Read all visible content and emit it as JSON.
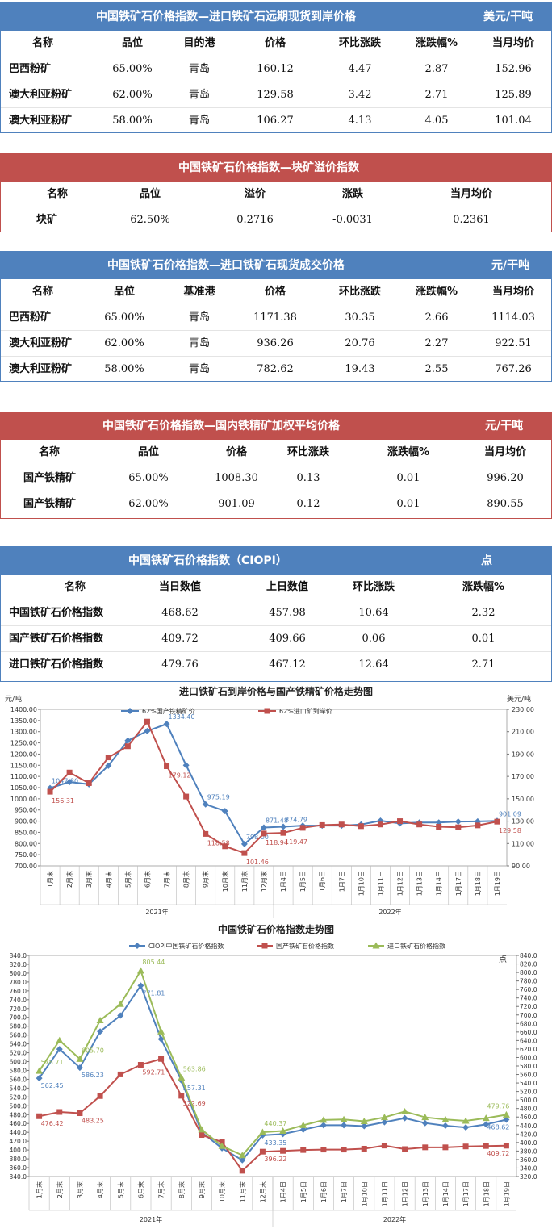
{
  "table1": {
    "title": "中国铁矿石价格指数—进口铁矿石远期现货到岸价格",
    "unit": "美元/干吨",
    "columns": [
      "名称",
      "品位",
      "目的港",
      "价格",
      "环比涨跌",
      "涨跌幅%",
      "当月均价"
    ],
    "rows": [
      [
        "巴西粉矿",
        "65.00%",
        "青岛",
        "160.12",
        "4.47",
        "2.87",
        "152.96"
      ],
      [
        "澳大利亚粉矿",
        "62.00%",
        "青岛",
        "129.58",
        "3.42",
        "2.71",
        "125.89"
      ],
      [
        "澳大利亚粉矿",
        "58.00%",
        "青岛",
        "106.27",
        "4.13",
        "4.05",
        "101.04"
      ]
    ]
  },
  "table2": {
    "title": "中国铁矿石价格指数—块矿溢价指数",
    "columns": [
      "名称",
      "品位",
      "溢价",
      "涨跌",
      "当月均价"
    ],
    "rows": [
      [
        "块矿",
        "62.50%",
        "0.2716",
        "-0.0031",
        "0.2361"
      ]
    ]
  },
  "table3": {
    "title": "中国铁矿石价格指数—进口铁矿石现货成交价格",
    "unit": "元/干吨",
    "columns": [
      "名称",
      "品位",
      "基准港",
      "价格",
      "环比涨跌",
      "涨跌幅%",
      "当月均价"
    ],
    "rows": [
      [
        "巴西粉矿",
        "65.00%",
        "青岛",
        "1171.38",
        "30.35",
        "2.66",
        "1114.03"
      ],
      [
        "澳大利亚粉矿",
        "62.00%",
        "青岛",
        "936.26",
        "20.76",
        "2.27",
        "922.51"
      ],
      [
        "澳大利亚粉矿",
        "58.00%",
        "青岛",
        "782.62",
        "19.43",
        "2.55",
        "767.26"
      ]
    ]
  },
  "table4": {
    "title": "中国铁矿石价格指数—国内铁精矿加权平均价格",
    "unit": "元/干吨",
    "columns": [
      "名称",
      "品位",
      "价格",
      "环比涨跌",
      "涨跌幅%",
      "当月均价"
    ],
    "rows": [
      [
        "国产铁精矿",
        "65.00%",
        "1008.30",
        "0.13",
        "0.01",
        "996.20"
      ],
      [
        "国产铁精矿",
        "62.00%",
        "901.09",
        "0.12",
        "0.01",
        "890.55"
      ]
    ]
  },
  "table5": {
    "title": "中国铁矿石价格指数（CIOPI）",
    "unit": "点",
    "columns": [
      "名称",
      "当日数值",
      "上日数值",
      "环比涨跌",
      "涨跌幅%"
    ],
    "rows": [
      [
        "中国铁矿石价格指数",
        "468.62",
        "457.98",
        "10.64",
        "2.32"
      ],
      [
        "国产铁矿石价格指数",
        "409.72",
        "409.66",
        "0.06",
        "0.01"
      ],
      [
        "进口铁矿石价格指数",
        "479.76",
        "467.12",
        "12.64",
        "2.71"
      ]
    ]
  },
  "chart_data": [
    {
      "type": "line",
      "title": "进口铁矿石到岸价格与国产铁精矿价格走势图",
      "ylabel_left": "元/吨",
      "ylabel_right": "美元/吨",
      "categories": [
        "1月末",
        "2月末",
        "3月末",
        "4月末",
        "5月末",
        "6月末",
        "7月末",
        "8月末",
        "9月末",
        "10月末",
        "11月末",
        "12月末",
        "1月4日",
        "1月5日",
        "1月6日",
        "1月7日",
        "1月10日",
        "1月11日",
        "1月12日",
        "1月13日",
        "1月14日",
        "1月17日",
        "1月18日",
        "1月19日"
      ],
      "year_labels": [
        "2021年",
        "2022年"
      ],
      "y_left_range": [
        700,
        1400
      ],
      "y_right_range": [
        90,
        230
      ],
      "y_left_ticks": [
        "700.00",
        "750.00",
        "800.00",
        "850.00",
        "900.00",
        "950.00",
        "1000.00",
        "1050.00",
        "1100.00",
        "1150.00",
        "1200.00",
        "1250.00",
        "1300.00",
        "1350.00",
        "1400.00"
      ],
      "y_right_ticks": [
        "90.00",
        "110.00",
        "130.00",
        "150.00",
        "170.00",
        "190.00",
        "210.00",
        "230.00"
      ],
      "series": [
        {
          "name": "62%国产铁精矿价",
          "axis": "left",
          "color": "#4f81bd",
          "marker": "diamond",
          "values": [
            1047.8,
            1075,
            1065,
            1148,
            1260,
            1303,
            1334.4,
            1150,
            975.19,
            945,
            798,
            871.48,
            874.79,
            880,
            880,
            880,
            885,
            902,
            890,
            894,
            894,
            898,
            899,
            901.09
          ],
          "labels": [
            "1047.80",
            "",
            "",
            "",
            "",
            "",
            "1334.40",
            "",
            "975.19",
            "",
            "798.00",
            "871.48",
            "874.79",
            "",
            "",
            "",
            "",
            "",
            "",
            "",
            "",
            "",
            "",
            "901.09"
          ]
        },
        {
          "name": "62%进口矿到岸价",
          "axis": "right",
          "color": "#c0504d",
          "marker": "square",
          "values": [
            156.31,
            173.5,
            164,
            187,
            197,
            219,
            179.12,
            152,
            118.58,
            107.5,
            101.46,
            118.94,
            119.47,
            124,
            126.5,
            127,
            125.5,
            127,
            130,
            127,
            125,
            124.5,
            126.2,
            129.58
          ],
          "labels": [
            "156.31",
            "",
            "",
            "",
            "",
            "",
            "179.12",
            "",
            "118.58",
            "",
            "101.46",
            "118.94",
            "119.47",
            "",
            "",
            "",
            "",
            "",
            "",
            "",
            "",
            "",
            "",
            "129.58"
          ]
        }
      ]
    },
    {
      "type": "line",
      "title": "中国铁矿石价格指数走势图",
      "ylabel_right": "点",
      "categories": [
        "1月末",
        "2月末",
        "3月末",
        "4月末",
        "5月末",
        "6月末",
        "7月末",
        "8月末",
        "9月末",
        "10月末",
        "11月末",
        "12月末",
        "1月4日",
        "1月5日",
        "1月6日",
        "1月7日",
        "1月10日",
        "1月11日",
        "1月12日",
        "1月13日",
        "1月14日",
        "1月17日",
        "1月18日",
        "1月19日"
      ],
      "year_labels": [
        "2021年",
        "2022年"
      ],
      "y_range": [
        340,
        840
      ],
      "y_ticks": [
        "340.0",
        "360.0",
        "380.0",
        "400.0",
        "420.0",
        "440.0",
        "460.0",
        "480.0",
        "500.0",
        "520.0",
        "540.0",
        "560.0",
        "580.0",
        "600.0",
        "620.0",
        "640.0",
        "660.0",
        "680.0",
        "700.0",
        "720.0",
        "740.0",
        "760.0",
        "780.0",
        "800.0",
        "820.0",
        "840.0"
      ],
      "y_ticks_right": [
        "320.0",
        "340.0",
        "360.0",
        "380.0",
        "400.0",
        "420.0",
        "440.0",
        "460.0",
        "480.0",
        "500.0",
        "520.0",
        "540.0",
        "560.0",
        "580.0",
        "600.0",
        "620.0",
        "640.0",
        "660.0",
        "680.0",
        "700.0",
        "720.0",
        "740.0",
        "760.0",
        "780.0",
        "800.0",
        "820.0",
        "840.0"
      ],
      "series": [
        {
          "name": "CIOPI中国铁矿石价格指数",
          "color": "#4f81bd",
          "marker": "diamond",
          "values": [
            562.45,
            628,
            586.23,
            668,
            704,
            771.81,
            651,
            557.31,
            440,
            404,
            377,
            433.35,
            436,
            446,
            456,
            456,
            454,
            463,
            472,
            461,
            455,
            451,
            458,
            468.62
          ],
          "labels": [
            "562.45",
            "",
            "586.23",
            "",
            "",
            "771.81",
            "",
            "557.31",
            "",
            "",
            "",
            "433.35",
            "",
            "",
            "",
            "",
            "",
            "",
            "",
            "",
            "",
            "",
            "",
            "468.62"
          ]
        },
        {
          "name": "国产铁矿石价格指数",
          "color": "#c0504d",
          "marker": "square",
          "values": [
            476.42,
            486,
            483.25,
            522,
            571,
            592.71,
            606,
            522.69,
            434,
            418,
            353,
            396.22,
            398,
            400,
            401,
            401,
            403,
            410,
            402,
            406,
            406,
            408,
            409,
            409.72
          ],
          "labels": [
            "476.42",
            "",
            "483.25",
            "",
            "",
            "592.71",
            "",
            "522.69",
            "",
            "",
            "",
            "396.22",
            "",
            "",
            "",
            "",
            "",
            "",
            "",
            "",
            "",
            "",
            "",
            "409.72"
          ]
        },
        {
          "name": "进口铁矿石价格指数",
          "color": "#9bbb59",
          "marker": "triangle",
          "values": [
            578.71,
            648,
            605.7,
            693,
            730,
            805.44,
            668,
            563.86,
            446,
            409,
            388,
            440.37,
            443,
            456,
            468,
            469,
            465,
            474,
            487,
            474,
            469,
            466,
            472,
            479.76
          ],
          "labels": [
            "578.71",
            "",
            "605.70",
            "",
            "",
            "805.44",
            "",
            "563.86",
            "",
            "",
            "",
            "440.37",
            "",
            "",
            "",
            "",
            "",
            "",
            "",
            "",
            "",
            "",
            "",
            "479.76"
          ]
        }
      ]
    }
  ]
}
